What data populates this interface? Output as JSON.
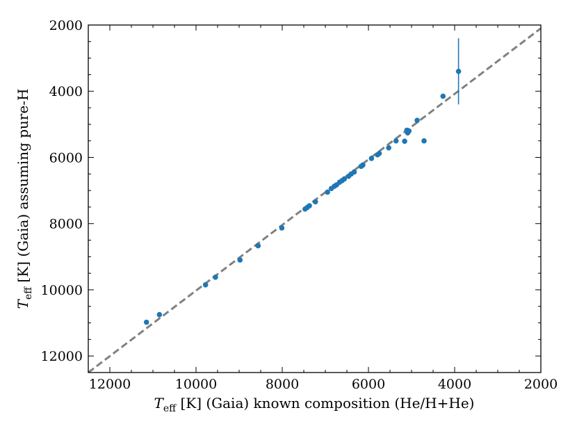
{
  "chart_data": {
    "type": "scatter",
    "xlabel": {
      "symbol": "T",
      "sub": "eff",
      "rest": " [K] (Gaia) known composition (He/H+He)"
    },
    "ylabel": {
      "symbol": "T",
      "sub": "eff",
      "rest": " [K] (Gaia) assuming pure-H"
    },
    "xlim": [
      12500,
      2000
    ],
    "ylim": [
      12500,
      2000
    ],
    "x_ticks": [
      12000,
      10000,
      8000,
      6000,
      4000,
      2000
    ],
    "y_ticks": [
      2000,
      4000,
      6000,
      8000,
      10000,
      12000
    ],
    "x_tick_labels": [
      "12000",
      "10000",
      "8000",
      "6000",
      "4000",
      "2000"
    ],
    "y_tick_labels": [
      "2000",
      "4000",
      "6000",
      "8000",
      "10000",
      "12000"
    ],
    "reference_line": {
      "x": [
        12500,
        2000
      ],
      "y": [
        12500,
        2100
      ],
      "style": "dashed",
      "color": "#808080"
    },
    "marker_color": "#1f77b4",
    "points": [
      {
        "x": 11150,
        "y": 10980
      },
      {
        "x": 10850,
        "y": 10750
      },
      {
        "x": 9780,
        "y": 9850
      },
      {
        "x": 9550,
        "y": 9620
      },
      {
        "x": 8980,
        "y": 9100
      },
      {
        "x": 8560,
        "y": 8670
      },
      {
        "x": 8010,
        "y": 8130
      },
      {
        "x": 7470,
        "y": 7560
      },
      {
        "x": 7420,
        "y": 7510
      },
      {
        "x": 7370,
        "y": 7460
      },
      {
        "x": 7230,
        "y": 7340
      },
      {
        "x": 6950,
        "y": 7050
      },
      {
        "x": 6860,
        "y": 6940
      },
      {
        "x": 6790,
        "y": 6870
      },
      {
        "x": 6740,
        "y": 6830
      },
      {
        "x": 6670,
        "y": 6750
      },
      {
        "x": 6610,
        "y": 6700
      },
      {
        "x": 6560,
        "y": 6650
      },
      {
        "x": 6460,
        "y": 6570
      },
      {
        "x": 6400,
        "y": 6500
      },
      {
        "x": 6330,
        "y": 6440
      },
      {
        "x": 6170,
        "y": 6270
      },
      {
        "x": 6130,
        "y": 6230
      },
      {
        "x": 5930,
        "y": 6030
      },
      {
        "x": 5790,
        "y": 5920
      },
      {
        "x": 5750,
        "y": 5880
      },
      {
        "x": 5530,
        "y": 5710
      },
      {
        "x": 5360,
        "y": 5500
      },
      {
        "x": 5160,
        "y": 5510
      },
      {
        "x": 5110,
        "y": 5180
      },
      {
        "x": 5090,
        "y": 5260
      },
      {
        "x": 5060,
        "y": 5200
      },
      {
        "x": 4870,
        "y": 4880
      },
      {
        "x": 4710,
        "y": 5500
      },
      {
        "x": 4270,
        "y": 4150
      },
      {
        "x": 3910,
        "y": 3400,
        "yerr": 1000
      }
    ]
  }
}
